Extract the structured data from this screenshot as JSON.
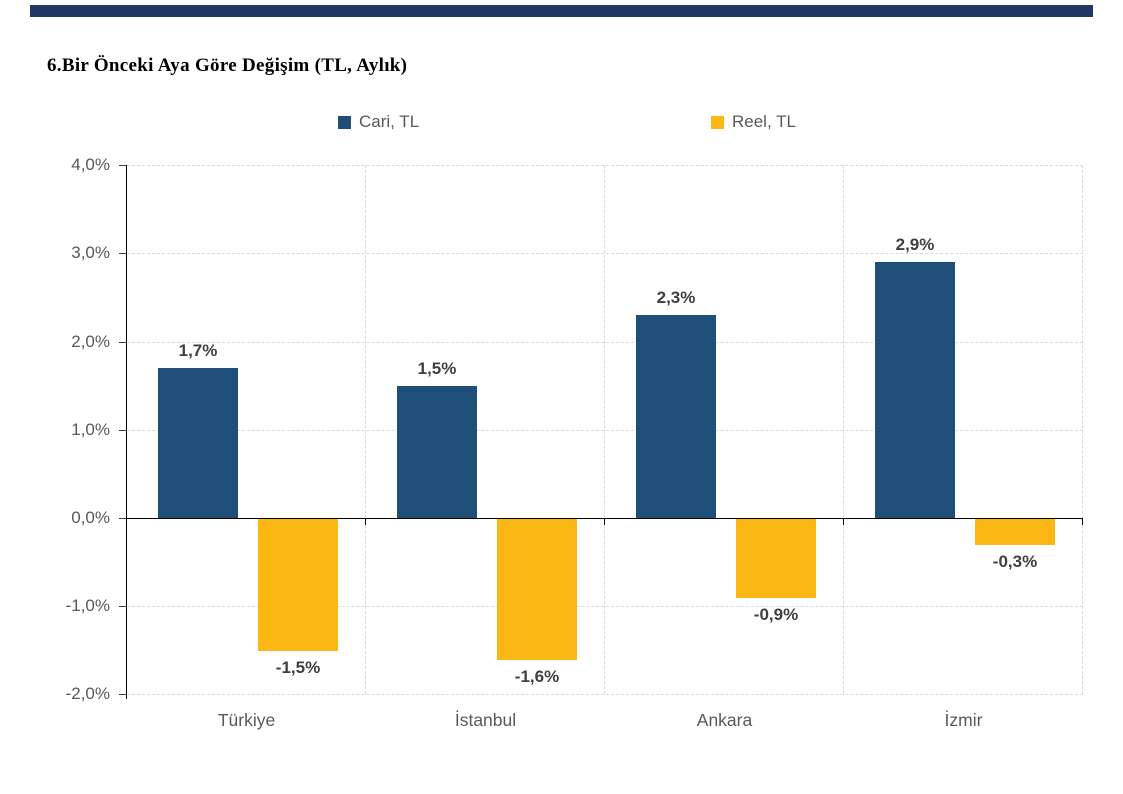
{
  "page": {
    "background": "#ffffff",
    "top_divider_color": "#1f3864"
  },
  "chart_data": {
    "type": "bar",
    "title": "6.Bir Önceki Aya Göre Değişim (TL, Aylık)",
    "categories": [
      "Türkiye",
      "İstanbul",
      "Ankara",
      "İzmir"
    ],
    "series": [
      {
        "name": "Cari, TL",
        "color": "#1f4e79",
        "values": [
          1.7,
          1.5,
          2.3,
          2.9
        ],
        "labels": [
          "1,7%",
          "1,5%",
          "2,3%",
          "2,9%"
        ]
      },
      {
        "name": "Reel, TL",
        "color": "#fdb714",
        "values": [
          -1.5,
          -1.6,
          -0.9,
          -0.3
        ],
        "labels": [
          "-1,5%",
          "-1,6%",
          "-0,9%",
          "-0,3%"
        ]
      }
    ],
    "y_ticks": [
      {
        "value": 4,
        "label": "4,0%"
      },
      {
        "value": 3,
        "label": "3,0%"
      },
      {
        "value": 2,
        "label": "2,0%"
      },
      {
        "value": 1,
        "label": "1,0%"
      },
      {
        "value": 0,
        "label": "0,0%"
      },
      {
        "value": -1,
        "label": "-1,0%"
      },
      {
        "value": -2,
        "label": "-2,0%"
      }
    ],
    "ylim": [
      -2,
      4
    ],
    "grid": true,
    "legend_position": "top",
    "gridline_color": "#d9d9d9",
    "axis_color": "#000000",
    "tick_label_color": "#595959",
    "value_label_color": "#3f3f3f"
  }
}
